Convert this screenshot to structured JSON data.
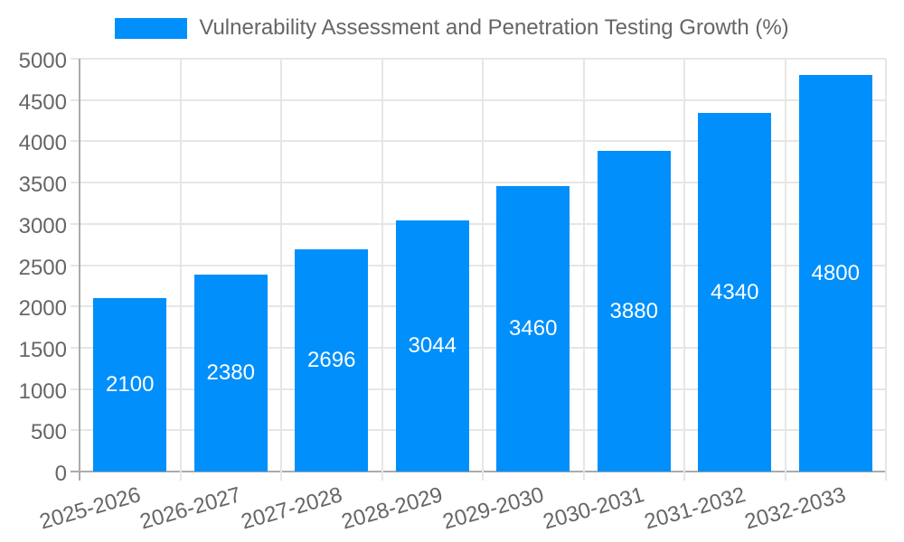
{
  "legend": {
    "label": "Vulnerability Assessment and Penetration Testing Growth (%)"
  },
  "chart_data": {
    "type": "bar",
    "title": "Vulnerability Assessment and Penetration Testing Growth (%)",
    "series_name": "Vulnerability Assessment and Penetration Testing Growth (%)",
    "categories": [
      "2025-2026",
      "2026-2027",
      "2027-2028",
      "2028-2029",
      "2029-2030",
      "2030-2031",
      "2031-2032",
      "2032-2033"
    ],
    "values": [
      2100,
      2380,
      2696,
      3044,
      3460,
      3880,
      4340,
      4800
    ],
    "data_labels": [
      "2100",
      "2380",
      "2696",
      "3044",
      "3460",
      "3880",
      "4340",
      "4800"
    ],
    "xlabel": "",
    "ylabel": "",
    "ylim": [
      0,
      5000
    ],
    "ytick_step": 500,
    "yticks": [
      0,
      500,
      1000,
      1500,
      2000,
      2500,
      3000,
      3500,
      4000,
      4500,
      5000
    ],
    "grid": true,
    "legend_position": "top",
    "colors": {
      "bar": "#008FFB",
      "data_label": "#ffffff",
      "tick_label": "#666666",
      "gridline": "#e6e6e6",
      "axis_line": "#ababab",
      "background": "#ffffff"
    }
  }
}
